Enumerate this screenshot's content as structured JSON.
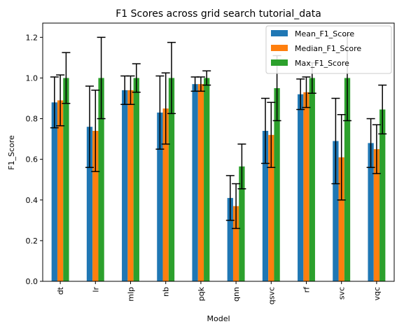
{
  "chart_data": {
    "type": "bar",
    "title": "F1 Scores across grid search tutorial_data",
    "xlabel": "Model",
    "ylabel": "F1_Score",
    "ylim": [
      0,
      1.27
    ],
    "yticks": [
      "0.0",
      "0.2",
      "0.4",
      "0.6",
      "0.8",
      "1.0",
      "1.2"
    ],
    "ytick_values": [
      0.0,
      0.2,
      0.4,
      0.6,
      0.8,
      1.0,
      1.2
    ],
    "categories": [
      "dt",
      "lr",
      "mlp",
      "nb",
      "pqk",
      "qnn",
      "qsvc",
      "rf",
      "svc",
      "vqc"
    ],
    "legend_position": "top-right",
    "grid": false,
    "series": [
      {
        "name": "Mean_F1_Score",
        "color": "#1f77b4",
        "values": [
          0.88,
          0.76,
          0.94,
          0.83,
          0.97,
          0.41,
          0.74,
          0.92,
          0.69,
          0.68
        ],
        "errors": [
          0.125,
          0.2,
          0.07,
          0.18,
          0.035,
          0.11,
          0.16,
          0.075,
          0.21,
          0.12
        ]
      },
      {
        "name": "Median_F1_Score",
        "color": "#ff7f0e",
        "values": [
          0.89,
          0.74,
          0.94,
          0.85,
          0.97,
          0.37,
          0.72,
          0.93,
          0.61,
          0.65
        ],
        "errors": [
          0.125,
          0.2,
          0.07,
          0.175,
          0.035,
          0.11,
          0.16,
          0.075,
          0.21,
          0.12
        ]
      },
      {
        "name": "Max_F1_Score",
        "color": "#2ca02c",
        "values": [
          1.0,
          1.0,
          1.0,
          1.0,
          1.0,
          0.565,
          0.95,
          1.0,
          1.0,
          0.845
        ],
        "errors": [
          0.125,
          0.2,
          0.07,
          0.175,
          0.035,
          0.11,
          0.16,
          0.075,
          0.21,
          0.12
        ]
      }
    ]
  }
}
